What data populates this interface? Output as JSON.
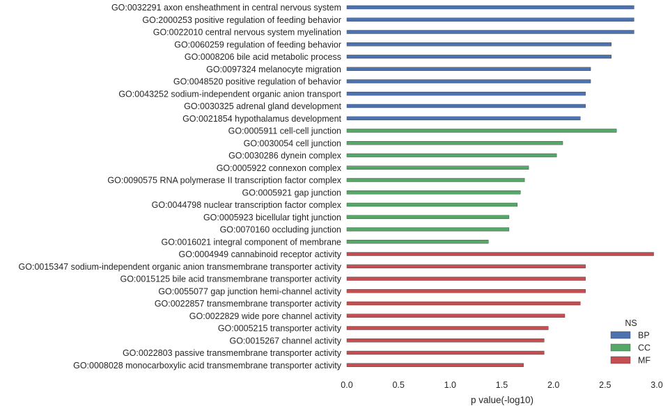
{
  "chart_data": {
    "type": "bar",
    "orientation": "horizontal",
    "xlabel": "p value(-log10)",
    "ylabel": "",
    "xlim": [
      0,
      3.0
    ],
    "xticks": [
      "0.0",
      "0.5",
      "1.0",
      "1.5",
      "2.0",
      "2.5",
      "3.0"
    ],
    "grid": false,
    "legend": {
      "title": "NS",
      "placement": "bottom-right",
      "entries": [
        {
          "name": "BP",
          "color": "#4c72b0"
        },
        {
          "name": "CC",
          "color": "#55a868"
        },
        {
          "name": "MF",
          "color": "#c44e52"
        }
      ]
    },
    "bars": [
      {
        "label": "GO:0032291 axon ensheathment in central nervous system",
        "value": 2.78,
        "ns": "BP"
      },
      {
        "label": "GO:2000253 positive regulation of feeding behavior",
        "value": 2.78,
        "ns": "BP"
      },
      {
        "label": "GO:0022010 central nervous system myelination",
        "value": 2.78,
        "ns": "BP"
      },
      {
        "label": "GO:0060259 regulation of feeding behavior",
        "value": 2.56,
        "ns": "BP"
      },
      {
        "label": "GO:0008206 bile acid metabolic process",
        "value": 2.56,
        "ns": "BP"
      },
      {
        "label": "GO:0097324 melanocyte migration",
        "value": 2.36,
        "ns": "BP"
      },
      {
        "label": "GO:0048520 positive regulation of behavior",
        "value": 2.36,
        "ns": "BP"
      },
      {
        "label": "GO:0043252 sodium-independent organic anion transport",
        "value": 2.31,
        "ns": "BP"
      },
      {
        "label": "GO:0030325 adrenal gland development",
        "value": 2.31,
        "ns": "BP"
      },
      {
        "label": "GO:0021854 hypothalamus development",
        "value": 2.26,
        "ns": "BP"
      },
      {
        "label": "GO:0005911 cell-cell junction",
        "value": 2.61,
        "ns": "CC"
      },
      {
        "label": "GO:0030054 cell junction",
        "value": 2.09,
        "ns": "CC"
      },
      {
        "label": "GO:0030286 dynein complex",
        "value": 2.03,
        "ns": "CC"
      },
      {
        "label": "GO:0005922 connexon complex",
        "value": 1.76,
        "ns": "CC"
      },
      {
        "label": "GO:0090575 RNA polymerase II transcription factor complex",
        "value": 1.72,
        "ns": "CC"
      },
      {
        "label": "GO:0005921 gap junction",
        "value": 1.68,
        "ns": "CC"
      },
      {
        "label": "GO:0044798 nuclear transcription factor complex",
        "value": 1.65,
        "ns": "CC"
      },
      {
        "label": "GO:0005923 bicellular tight junction",
        "value": 1.57,
        "ns": "CC"
      },
      {
        "label": "GO:0070160 occluding junction",
        "value": 1.57,
        "ns": "CC"
      },
      {
        "label": "GO:0016021 integral component of membrane",
        "value": 1.37,
        "ns": "CC"
      },
      {
        "label": "GO:0004949 cannabinoid receptor activity",
        "value": 2.97,
        "ns": "MF"
      },
      {
        "label": "GO:0015347 sodium-independent organic anion transmembrane transporter activity",
        "value": 2.31,
        "ns": "MF"
      },
      {
        "label": "GO:0015125 bile acid transmembrane transporter activity",
        "value": 2.31,
        "ns": "MF"
      },
      {
        "label": "GO:0055077 gap junction hemi-channel activity",
        "value": 2.31,
        "ns": "MF"
      },
      {
        "label": "GO:0022857 transmembrane transporter activity",
        "value": 2.26,
        "ns": "MF"
      },
      {
        "label": "GO:0022829 wide pore channel activity",
        "value": 2.11,
        "ns": "MF"
      },
      {
        "label": "GO:0005215 transporter activity",
        "value": 1.95,
        "ns": "MF"
      },
      {
        "label": "GO:0015267 channel activity",
        "value": 1.91,
        "ns": "MF"
      },
      {
        "label": "GO:0022803 passive transmembrane transporter activity",
        "value": 1.91,
        "ns": "MF"
      },
      {
        "label": "GO:0008028 monocarboxylic acid transmembrane transporter activity",
        "value": 1.71,
        "ns": "MF"
      }
    ]
  }
}
